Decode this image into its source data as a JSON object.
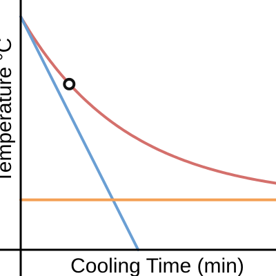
{
  "chart_data": {
    "type": "line",
    "xlabel": "Cooling Time (min)",
    "ylabel": "Temperature °C",
    "xlim": [
      0,
      10
    ],
    "ylim": [
      -2,
      28
    ],
    "grid": false,
    "legend": "none",
    "series": [
      {
        "kind": "exponential-decay",
        "ambient": 4,
        "initial": 26,
        "rate": 0.24,
        "x_range": [
          0,
          10
        ],
        "color": "#d4706c"
      },
      {
        "kind": "tangent",
        "x": [
          0,
          4.6
        ],
        "y": [
          26,
          -2
        ],
        "color": "#6a9fd4"
      },
      {
        "kind": "horizontal",
        "x": [
          0,
          10
        ],
        "y": [
          4,
          4
        ],
        "color": "#f4a055"
      }
    ],
    "points": [
      {
        "x": 1.9,
        "y": 17.9,
        "style": "hollow-circle"
      }
    ]
  }
}
